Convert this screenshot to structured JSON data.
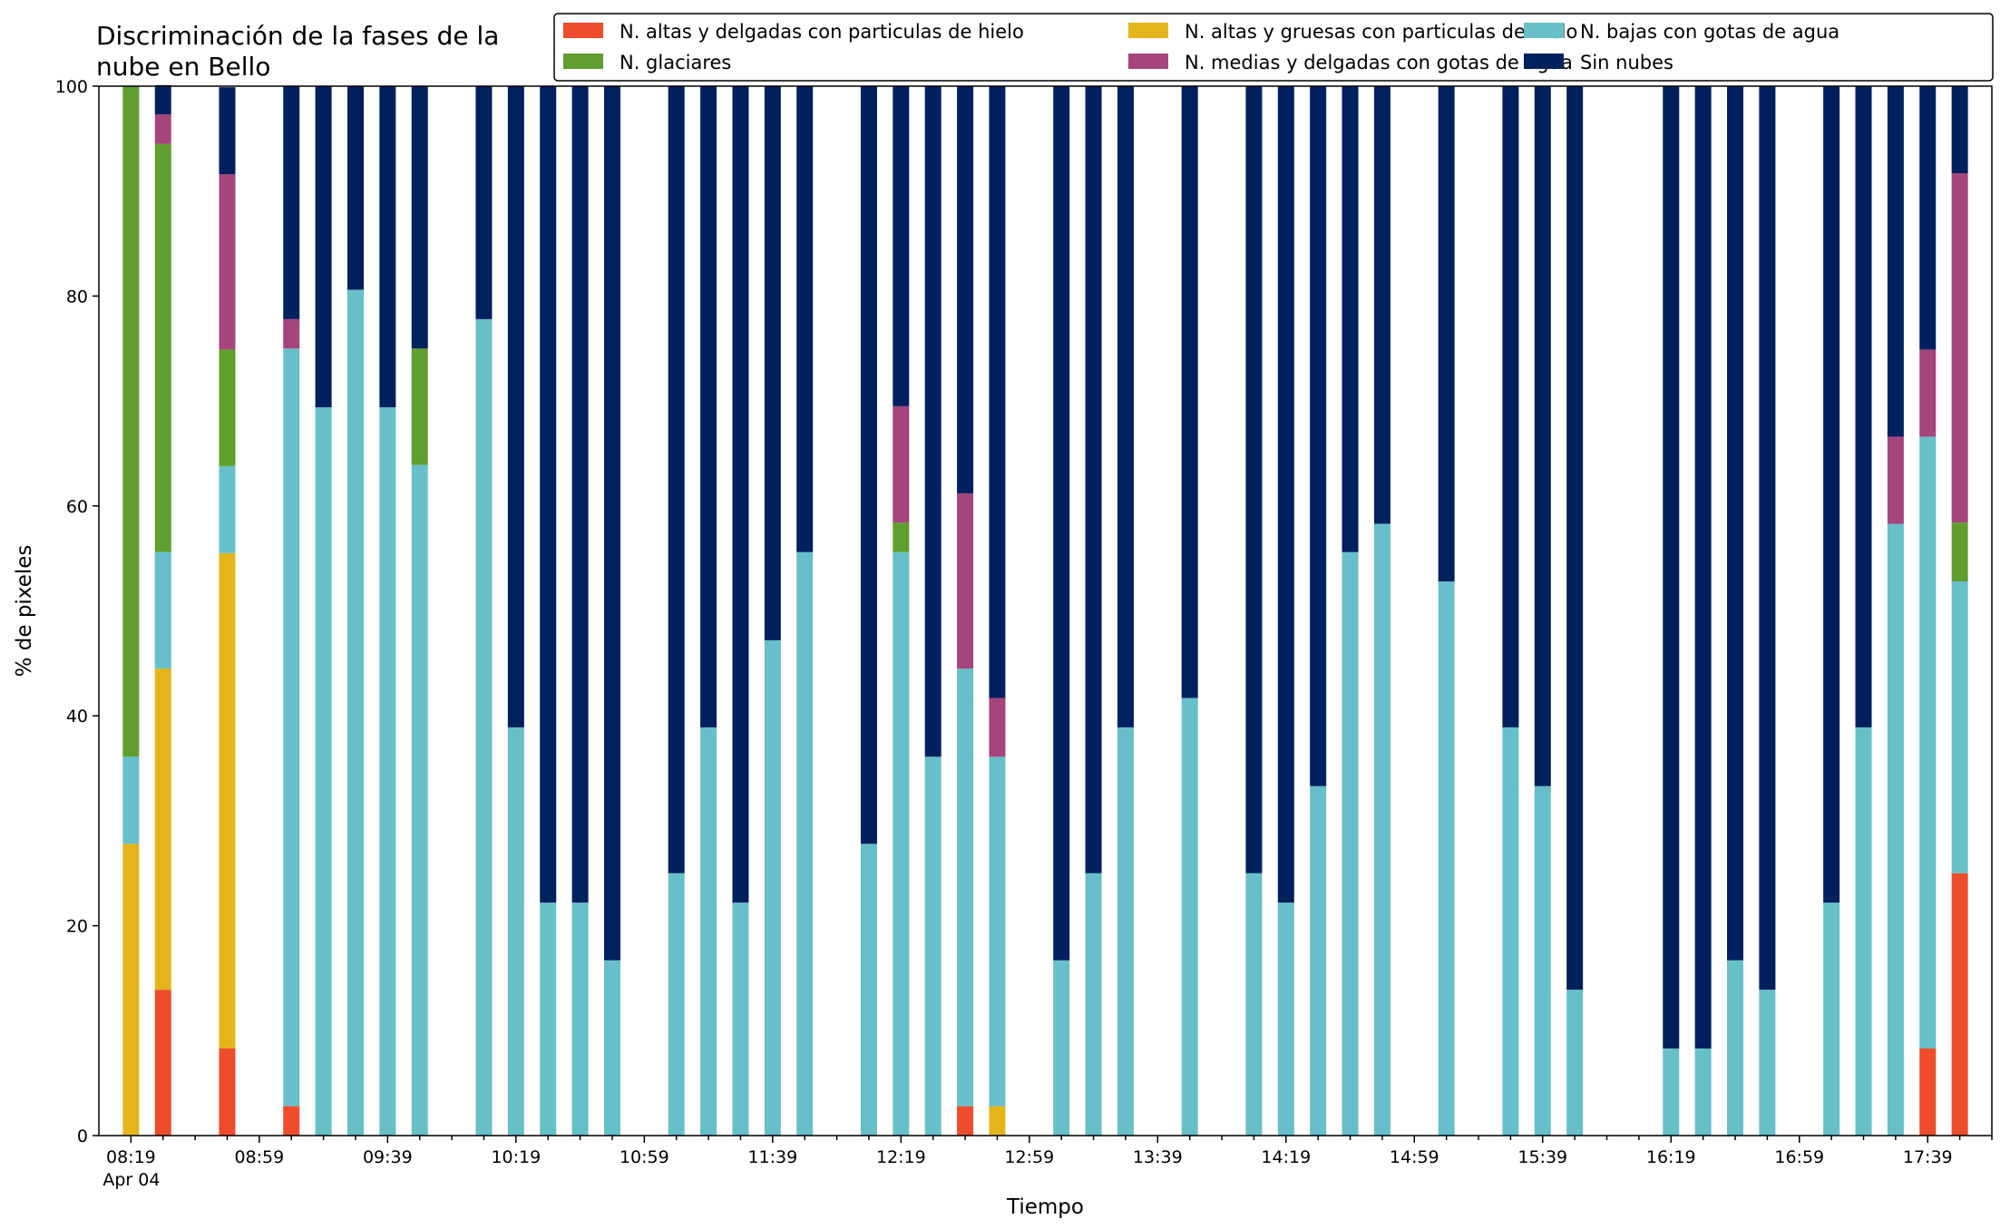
{
  "chart_data": {
    "type": "bar",
    "stacked": true,
    "title_lines": [
      "Discriminación de la fases de la",
      "nube en Bello"
    ],
    "xlabel": "Tiempo",
    "ylabel": "% de pixeles",
    "ylim": [
      0,
      100
    ],
    "yticks": [
      0,
      20,
      40,
      60,
      80,
      100
    ],
    "x_start": "08:19",
    "x_end": "17:59",
    "x_step_minutes": 10,
    "xtick_labels": [
      "08:19",
      "08:59",
      "09:39",
      "10:19",
      "10:59",
      "11:39",
      "12:19",
      "12:59",
      "13:39",
      "14:19",
      "14:59",
      "15:39",
      "16:19",
      "16:59",
      "17:39"
    ],
    "xtick_sublabel": "Apr 04",
    "grid": false,
    "legend_position": "top-right",
    "legend_columns": 3,
    "series": [
      {
        "name": "N. altas y delgadas con particulas de hielo",
        "color": "#ee4c2c"
      },
      {
        "name": "N. altas y gruesas con particulas de hielo",
        "color": "#e3b51a"
      },
      {
        "name": "N. bajas con gotas de agua",
        "color": "#67bfca"
      },
      {
        "name": "N. glaciares",
        "color": "#5f9e2f"
      },
      {
        "name": "N. medias y delgadas con gotas de agua",
        "color": "#a5457b"
      },
      {
        "name": "Sin nubes",
        "color": "#00205e"
      }
    ],
    "bars": [
      {
        "time": "08:19",
        "values": [
          0,
          27.8,
          8.3,
          63.9,
          0,
          0
        ]
      },
      {
        "time": "08:29",
        "values": [
          13.9,
          30.6,
          11.1,
          38.9,
          2.8,
          2.8
        ]
      },
      {
        "time": "08:49",
        "values": [
          8.3,
          47.2,
          8.3,
          11.1,
          16.7,
          8.3
        ]
      },
      {
        "time": "09:09",
        "values": [
          2.8,
          0,
          72.2,
          0,
          2.8,
          22.2
        ]
      },
      {
        "time": "09:19",
        "values": [
          0,
          0,
          69.4,
          0,
          0,
          30.6
        ]
      },
      {
        "time": "09:29",
        "values": [
          0,
          0,
          80.6,
          0,
          0,
          19.4
        ]
      },
      {
        "time": "09:39",
        "values": [
          0,
          0,
          69.4,
          0,
          0,
          30.6
        ]
      },
      {
        "time": "09:49",
        "values": [
          0,
          0,
          63.9,
          11.1,
          0,
          25.0
        ]
      },
      {
        "time": "10:09",
        "values": [
          0,
          0,
          77.8,
          0,
          0,
          22.2
        ]
      },
      {
        "time": "10:19",
        "values": [
          0,
          0,
          38.9,
          0,
          0,
          61.1
        ]
      },
      {
        "time": "10:29",
        "values": [
          0,
          0,
          22.2,
          0,
          0,
          77.8
        ]
      },
      {
        "time": "10:39",
        "values": [
          0,
          0,
          22.2,
          0,
          0,
          77.8
        ]
      },
      {
        "time": "10:49",
        "values": [
          0,
          0,
          16.7,
          0,
          0,
          83.3
        ]
      },
      {
        "time": "11:09",
        "values": [
          0,
          0,
          25.0,
          0,
          0,
          75.0
        ]
      },
      {
        "time": "11:19",
        "values": [
          0,
          0,
          38.9,
          0,
          0,
          61.1
        ]
      },
      {
        "time": "11:29",
        "values": [
          0,
          0,
          22.2,
          0,
          0,
          77.8
        ]
      },
      {
        "time": "11:39",
        "values": [
          0,
          0,
          47.2,
          0,
          0,
          52.8
        ]
      },
      {
        "time": "11:49",
        "values": [
          0,
          0,
          55.6,
          0,
          0,
          44.4
        ]
      },
      {
        "time": "12:09",
        "values": [
          0,
          0,
          27.8,
          0,
          0,
          72.2
        ]
      },
      {
        "time": "12:19",
        "values": [
          0,
          0,
          55.6,
          2.8,
          11.1,
          30.5
        ]
      },
      {
        "time": "12:29",
        "values": [
          0,
          0,
          36.1,
          0,
          0,
          63.9
        ]
      },
      {
        "time": "12:39",
        "values": [
          2.8,
          0,
          41.7,
          0,
          16.7,
          38.8
        ]
      },
      {
        "time": "12:49",
        "values": [
          0,
          2.8,
          33.3,
          0,
          5.6,
          58.3
        ]
      },
      {
        "time": "13:09",
        "values": [
          0,
          0,
          16.7,
          0,
          0,
          83.3
        ]
      },
      {
        "time": "13:19",
        "values": [
          0,
          0,
          25.0,
          0,
          0,
          75.0
        ]
      },
      {
        "time": "13:29",
        "values": [
          0,
          0,
          38.9,
          0,
          0,
          61.1
        ]
      },
      {
        "time": "13:49",
        "values": [
          0,
          0,
          41.7,
          0,
          0,
          58.3
        ]
      },
      {
        "time": "14:09",
        "values": [
          0,
          0,
          25.0,
          0,
          0,
          75.0
        ]
      },
      {
        "time": "14:19",
        "values": [
          0,
          0,
          22.2,
          0,
          0,
          77.8
        ]
      },
      {
        "time": "14:29",
        "values": [
          0,
          0,
          33.3,
          0,
          0,
          66.7
        ]
      },
      {
        "time": "14:39",
        "values": [
          0,
          0,
          55.6,
          0,
          0,
          44.4
        ]
      },
      {
        "time": "14:49",
        "values": [
          0,
          0,
          58.3,
          0,
          0,
          41.7
        ]
      },
      {
        "time": "15:09",
        "values": [
          0,
          0,
          52.8,
          0,
          0,
          47.2
        ]
      },
      {
        "time": "15:29",
        "values": [
          0,
          0,
          38.9,
          0,
          0,
          61.1
        ]
      },
      {
        "time": "15:39",
        "values": [
          0,
          0,
          33.3,
          0,
          0,
          66.7
        ]
      },
      {
        "time": "15:49",
        "values": [
          0,
          0,
          13.9,
          0,
          0,
          86.1
        ]
      },
      {
        "time": "16:19",
        "values": [
          0,
          0,
          8.3,
          0,
          0,
          91.7
        ]
      },
      {
        "time": "16:29",
        "values": [
          0,
          0,
          8.3,
          0,
          0,
          91.7
        ]
      },
      {
        "time": "16:39",
        "values": [
          0,
          0,
          16.7,
          0,
          0,
          83.3
        ]
      },
      {
        "time": "16:49",
        "values": [
          0,
          0,
          13.9,
          0,
          0,
          86.1
        ]
      },
      {
        "time": "17:09",
        "values": [
          0,
          0,
          22.2,
          0,
          0,
          77.8
        ]
      },
      {
        "time": "17:19",
        "values": [
          0,
          0,
          38.9,
          0,
          0,
          61.1
        ]
      },
      {
        "time": "17:29",
        "values": [
          0,
          0,
          58.3,
          0,
          8.3,
          33.4
        ]
      },
      {
        "time": "17:39",
        "values": [
          8.3,
          0,
          58.3,
          0,
          8.3,
          25.1
        ]
      },
      {
        "time": "17:49",
        "values": [
          25.0,
          0,
          27.8,
          5.6,
          33.3,
          8.3
        ]
      }
    ]
  }
}
